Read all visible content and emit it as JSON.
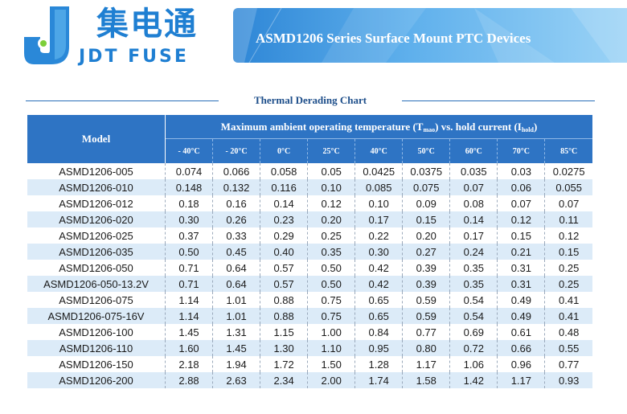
{
  "brand": {
    "cn_name": "集电通",
    "en_name": "JDT FUSE",
    "logo_letter": "J"
  },
  "banner": {
    "title": "ASMD1206 Series Surface Mount PTC Devices"
  },
  "chart_title": "Thermal Derading Chart",
  "table": {
    "model_header": "Model",
    "group_header_prefix": "Maximum ambient operating temperature (T",
    "group_header_sub1": "mao",
    "group_header_mid": ") vs. hold current (I",
    "group_header_sub2": "hold",
    "group_header_suffix": ")",
    "temperatures": [
      "- 40°C",
      "- 20°C",
      "0°C",
      "25°C",
      "40°C",
      "50°C",
      "60°C",
      "70°C",
      "85°C"
    ],
    "rows": [
      {
        "model": "ASMD1206-005",
        "values": [
          "0.074",
          "0.066",
          "0.058",
          "0.05",
          "0.0425",
          "0.0375",
          "0.035",
          "0.03",
          "0.0275"
        ]
      },
      {
        "model": "ASMD1206-010",
        "values": [
          "0.148",
          "0.132",
          "0.116",
          "0.10",
          "0.085",
          "0.075",
          "0.07",
          "0.06",
          "0.055"
        ]
      },
      {
        "model": "ASMD1206-012",
        "values": [
          "0.18",
          "0.16",
          "0.14",
          "0.12",
          "0.10",
          "0.09",
          "0.08",
          "0.07",
          "0.07"
        ]
      },
      {
        "model": "ASMD1206-020",
        "values": [
          "0.30",
          "0.26",
          "0.23",
          "0.20",
          "0.17",
          "0.15",
          "0.14",
          "0.12",
          "0.11"
        ]
      },
      {
        "model": "ASMD1206-025",
        "values": [
          "0.37",
          "0.33",
          "0.29",
          "0.25",
          "0.22",
          "0.20",
          "0.17",
          "0.15",
          "0.12"
        ]
      },
      {
        "model": "ASMD1206-035",
        "values": [
          "0.50",
          "0.45",
          "0.40",
          "0.35",
          "0.30",
          "0.27",
          "0.24",
          "0.21",
          "0.15"
        ]
      },
      {
        "model": "ASMD1206-050",
        "values": [
          "0.71",
          "0.64",
          "0.57",
          "0.50",
          "0.42",
          "0.39",
          "0.35",
          "0.31",
          "0.25"
        ]
      },
      {
        "model": "ASMD1206-050-13.2V",
        "values": [
          "0.71",
          "0.64",
          "0.57",
          "0.50",
          "0.42",
          "0.39",
          "0.35",
          "0.31",
          "0.25"
        ]
      },
      {
        "model": "ASMD1206-075",
        "values": [
          "1.14",
          "1.01",
          "0.88",
          "0.75",
          "0.65",
          "0.59",
          "0.54",
          "0.49",
          "0.41"
        ]
      },
      {
        "model": "ASMD1206-075-16V",
        "values": [
          "1.14",
          "1.01",
          "0.88",
          "0.75",
          "0.65",
          "0.59",
          "0.54",
          "0.49",
          "0.41"
        ]
      },
      {
        "model": "ASMD1206-100",
        "values": [
          "1.45",
          "1.31",
          "1.15",
          "1.00",
          "0.84",
          "0.77",
          "0.69",
          "0.61",
          "0.48"
        ]
      },
      {
        "model": "ASMD1206-110",
        "values": [
          "1.60",
          "1.45",
          "1.30",
          "1.10",
          "0.95",
          "0.80",
          "0.72",
          "0.66",
          "0.55"
        ]
      },
      {
        "model": "ASMD1206-150",
        "values": [
          "2.18",
          "1.94",
          "1.72",
          "1.50",
          "1.28",
          "1.17",
          "1.06",
          "0.96",
          "0.77"
        ]
      },
      {
        "model": "ASMD1206-200",
        "values": [
          "2.88",
          "2.63",
          "2.34",
          "2.00",
          "1.74",
          "1.58",
          "1.42",
          "1.17",
          "0.93"
        ]
      }
    ]
  },
  "colors": {
    "brand_blue": "#1f7fd2",
    "header_blue": "#2e74c4",
    "row_alt": "#dcebf8",
    "title_navy": "#1d4e8a"
  }
}
